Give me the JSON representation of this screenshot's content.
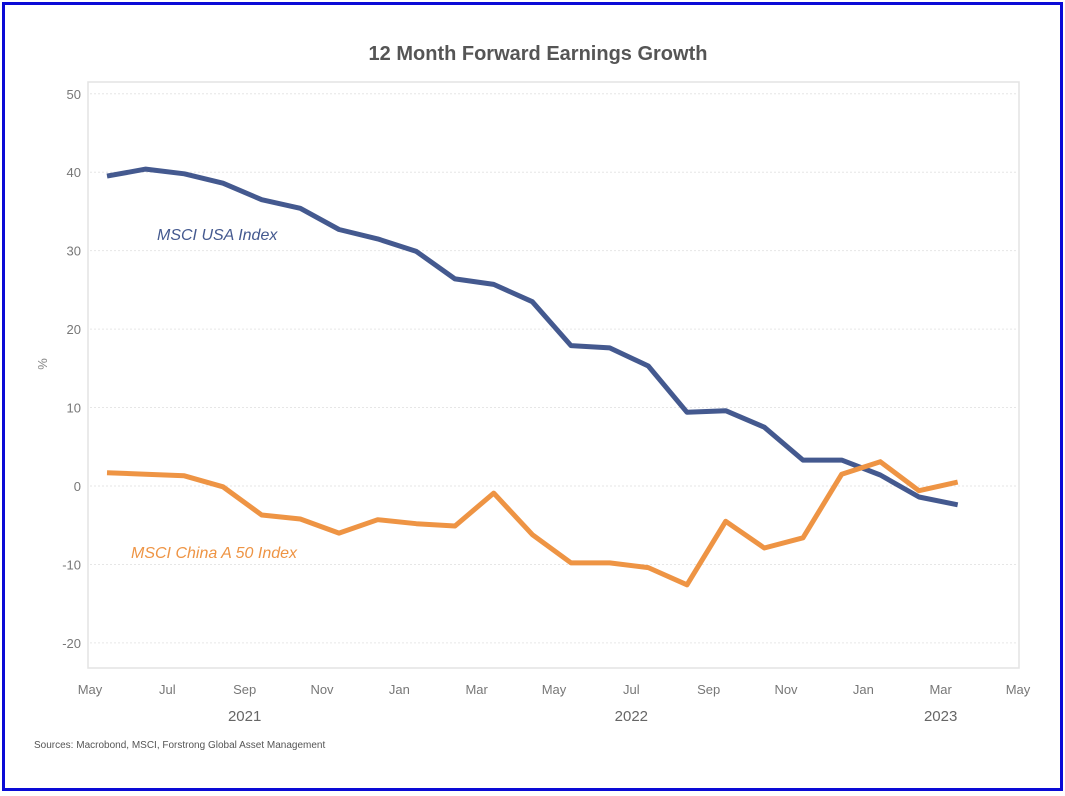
{
  "chart_data": {
    "type": "line",
    "title": "12 Month Forward Earnings Growth",
    "xlabel": "",
    "ylabel": "%",
    "ylim": [
      -23.2,
      51.5
    ],
    "yticks": [
      -20,
      -10,
      0,
      10,
      20,
      30,
      40,
      50
    ],
    "ytick_labels": [
      "-20",
      "-10",
      "0",
      "10",
      "20",
      "30",
      "40",
      "50"
    ],
    "xlim": [
      "2021-05-01",
      "2023-05-01"
    ],
    "xticks": [
      {
        "label": "May",
        "month_index": 0
      },
      {
        "label": "Jul",
        "month_index": 2
      },
      {
        "label": "Sep",
        "month_index": 4
      },
      {
        "label": "Nov",
        "month_index": 6
      },
      {
        "label": "Jan",
        "month_index": 8
      },
      {
        "label": "Mar",
        "month_index": 10
      },
      {
        "label": "May",
        "month_index": 12
      },
      {
        "label": "Jul",
        "month_index": 14
      },
      {
        "label": "Sep",
        "month_index": 16
      },
      {
        "label": "Nov",
        "month_index": 18
      },
      {
        "label": "Jan",
        "month_index": 20
      },
      {
        "label": "Mar",
        "month_index": 22
      },
      {
        "label": "May",
        "month_index": 24
      }
    ],
    "year_labels": [
      {
        "label": "2021",
        "month_index": 4
      },
      {
        "label": "2022",
        "month_index": 14
      },
      {
        "label": "2023",
        "month_index": 22
      }
    ],
    "grid": true,
    "legend": "inline-labels",
    "x": [
      "2021-05",
      "2021-06",
      "2021-07",
      "2021-08",
      "2021-09",
      "2021-10",
      "2021-11",
      "2021-12",
      "2022-01",
      "2022-02",
      "2022-03",
      "2022-04",
      "2022-05",
      "2022-06",
      "2022-07",
      "2022-08",
      "2022-09",
      "2022-10",
      "2022-11",
      "2022-12",
      "2023-01",
      "2023-02",
      "2023-03"
    ],
    "series": [
      {
        "name": "MSCI USA Index",
        "color": "#44598f",
        "values": [
          39.5,
          40.4,
          39.8,
          38.6,
          36.5,
          35.4,
          32.7,
          31.5,
          29.9,
          26.4,
          25.7,
          23.5,
          17.9,
          17.6,
          15.3,
          9.4,
          9.6,
          7.5,
          3.3,
          3.3,
          1.4,
          -1.4,
          -2.4
        ],
        "label_position": "upper-left"
      },
      {
        "name": "MSCI China A 50 Index",
        "color": "#ee9444",
        "values": [
          1.7,
          1.5,
          1.3,
          -0.1,
          -3.7,
          -4.2,
          -6.0,
          -4.3,
          -4.8,
          -5.1,
          -0.9,
          -6.2,
          -9.8,
          -9.8,
          -10.4,
          -12.6,
          -4.5,
          -7.9,
          -6.6,
          1.5,
          3.1,
          -0.6,
          0.5
        ],
        "label_position": "lower-left"
      }
    ],
    "source": "Sources: Macrobond, MSCI, Forstrong Global Asset Management"
  }
}
